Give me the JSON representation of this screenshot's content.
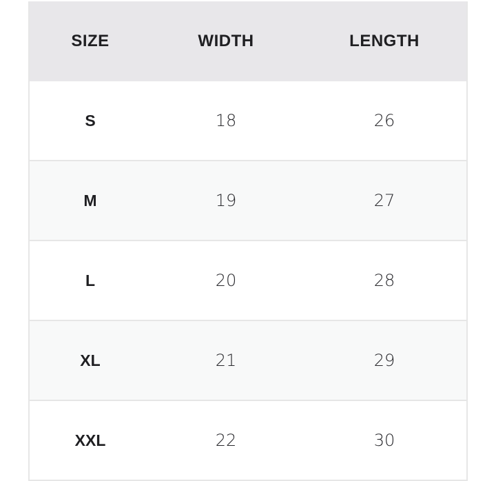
{
  "table": {
    "headers": [
      "SIZE",
      "WIDTH",
      "LENGTH"
    ],
    "rows": [
      {
        "size": "S",
        "width": "18",
        "length": "26"
      },
      {
        "size": "M",
        "width": "19",
        "length": "27"
      },
      {
        "size": "L",
        "width": "20",
        "length": "28"
      },
      {
        "size": "XL",
        "width": "21",
        "length": "29"
      },
      {
        "size": "XXL",
        "width": "22",
        "length": "30"
      }
    ]
  }
}
